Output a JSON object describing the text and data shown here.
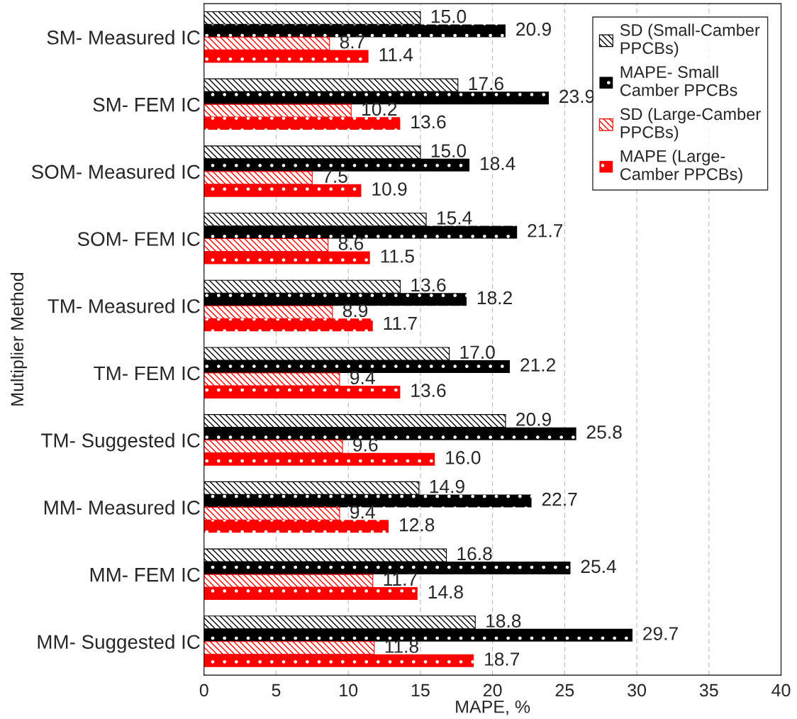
{
  "chart_data": {
    "type": "bar",
    "orientation": "horizontal",
    "xlabel": "MAPE, %",
    "ylabel": "Multiplier Method",
    "categories": [
      "SM- Measured IC",
      "SM- FEM IC",
      "SOM- Measured IC",
      "SOM- FEM IC",
      "TM- Measured IC",
      "TM- FEM IC",
      "TM- Suggested IC",
      "MM- Measured IC",
      "MM- FEM IC",
      "MM- Suggested IC"
    ],
    "series": [
      {
        "name": "SD (Small-Camber\nPPCBs)",
        "color": "#000000",
        "values": [
          15.0,
          17.6,
          15.0,
          15.4,
          13.6,
          17.0,
          20.9,
          14.9,
          16.8,
          18.8
        ],
        "value_labels": [
          "15.0",
          "17.6",
          "15.0",
          "15.4",
          "13.6",
          "17.0",
          "20.9",
          "14.9",
          "16.8",
          "18.8"
        ]
      },
      {
        "name": "MAPE- Small\nCamber PPCBs",
        "color": "#000000",
        "values": [
          20.9,
          23.9,
          18.4,
          21.7,
          18.2,
          21.2,
          25.8,
          22.7,
          25.4,
          29.7
        ],
        "value_labels": [
          "20.9",
          "23.9",
          "18.4",
          "21.7",
          "18.2",
          "21.2",
          "25.8",
          "22.7",
          "25.4",
          "29.7"
        ]
      },
      {
        "name": "SD (Large-Camber\nPPCBs)",
        "color": "#ff0000",
        "values": [
          8.7,
          10.2,
          7.5,
          8.6,
          8.9,
          9.4,
          9.6,
          9.4,
          11.7,
          11.8
        ],
        "value_labels": [
          "8.7",
          "10.2",
          "7.5",
          "8.6",
          "8.9",
          "9.4",
          "9.6",
          "9.4",
          "11.7",
          "11.8"
        ]
      },
      {
        "name": "MAPE (Large-\nCamber PPCBs)",
        "color": "#ff0000",
        "values": [
          11.4,
          13.6,
          10.9,
          11.5,
          11.7,
          13.6,
          16.0,
          12.8,
          14.8,
          18.7
        ],
        "value_labels": [
          "11.4",
          "13.6",
          "10.9",
          "11.5",
          "11.7",
          "13.6",
          "16.0",
          "12.8",
          "14.8",
          "18.7"
        ]
      }
    ],
    "xlim": [
      0,
      40
    ],
    "xticks": [
      0,
      5,
      10,
      15,
      20,
      25,
      30,
      35,
      40
    ],
    "grid": "x",
    "legend": "top right"
  }
}
